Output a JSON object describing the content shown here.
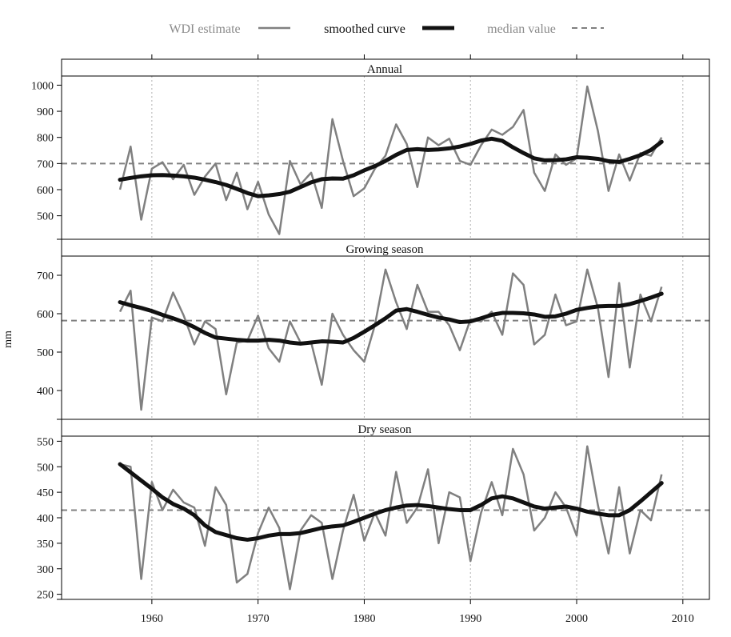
{
  "chart_data": {
    "type": "line",
    "ylabel": "mm",
    "x_axis": {
      "range": [
        1951.5,
        2012.5
      ],
      "ticks": [
        1960,
        1970,
        1980,
        1990,
        2000,
        2010
      ],
      "tick_labels": [
        "1960",
        "1970",
        "1980",
        "1990",
        "2000",
        "2010"
      ],
      "vertical_gridlines": [
        1960,
        1970,
        1980,
        1990,
        2000,
        2010
      ]
    },
    "legend": {
      "position": "top",
      "entries": [
        {
          "label": "WDI estimate",
          "style": "thin-gray"
        },
        {
          "label": "smoothed curve",
          "style": "thick-black"
        },
        {
          "label": "median value",
          "style": "dashed-gray"
        }
      ]
    },
    "colors": {
      "wdi": "#808080",
      "smoothed": "#111111",
      "median": "#808080",
      "grid": "#b0b0b0"
    },
    "years": [
      1957,
      1958,
      1959,
      1960,
      1961,
      1962,
      1963,
      1964,
      1965,
      1966,
      1967,
      1968,
      1969,
      1970,
      1971,
      1972,
      1973,
      1974,
      1975,
      1976,
      1977,
      1978,
      1979,
      1980,
      1981,
      1982,
      1983,
      1984,
      1985,
      1986,
      1987,
      1988,
      1989,
      1990,
      1991,
      1992,
      1993,
      1994,
      1995,
      1996,
      1997,
      1998,
      1999,
      2000,
      2001,
      2002,
      2003,
      2004,
      2005,
      2006,
      2007,
      2008
    ],
    "panels": [
      {
        "title": "Annual",
        "ylim": [
          410,
          1035
        ],
        "yticks": [
          500,
          600,
          700,
          800,
          900,
          1000
        ],
        "ytick_labels": [
          "500",
          "600",
          "700",
          "800",
          "900",
          "1000"
        ],
        "median": 700,
        "series": [
          {
            "name": "WDI estimate",
            "values": [
              600,
              765,
              485,
              680,
              705,
              640,
              695,
              580,
              650,
              700,
              560,
              665,
              525,
              630,
              505,
              430,
              710,
              620,
              665,
              530,
              870,
              710,
              575,
              605,
              680,
              730,
              850,
              775,
              610,
              800,
              770,
              795,
              710,
              695,
              770,
              830,
              810,
              840,
              905,
              665,
              595,
              735,
              695,
              720,
              995,
              825,
              595,
              735,
              635,
              740,
              730,
              800
            ]
          },
          {
            "name": "smoothed curve",
            "x": [
              1957,
              1958,
              1959,
              1960,
              1961,
              1962,
              1963,
              1964,
              1965,
              1966,
              1967,
              1968,
              1969,
              1970,
              1971,
              1972,
              1973,
              1974,
              1975,
              1976,
              1977,
              1978,
              1979,
              1980,
              1981,
              1982,
              1983,
              1984,
              1985,
              1986,
              1987,
              1988,
              1989,
              1990,
              1991,
              1992,
              1993,
              1994,
              1995,
              1996,
              1997,
              1998,
              1999,
              2000,
              2001,
              2002,
              2003,
              2004,
              2005,
              2006,
              2007,
              2008
            ],
            "values": [
              638,
              645,
              651,
              655,
              656,
              654,
              651,
              646,
              638,
              629,
              618,
              603,
              587,
              575,
              578,
              583,
              592,
              610,
              628,
              640,
              643,
              642,
              655,
              674,
              690,
              710,
              733,
              752,
              755,
              752,
              754,
              758,
              765,
              775,
              788,
              795,
              787,
              762,
              740,
              720,
              712,
              713,
              716,
              724,
              722,
              718,
              709,
              706,
              718,
              732,
              752,
              783
            ]
          }
        ]
      },
      {
        "title": "Growing season",
        "ylim": [
          325,
          750
        ],
        "yticks": [
          400,
          500,
          600,
          700
        ],
        "ytick_labels": [
          "400",
          "500",
          "600",
          "700"
        ],
        "median": 582,
        "series": [
          {
            "name": "WDI estimate",
            "values": [
              605,
              660,
              350,
              590,
              580,
              655,
              595,
              520,
              580,
              560,
              390,
              525,
              530,
              595,
              510,
              475,
              580,
              525,
              525,
              415,
              600,
              545,
              505,
              475,
              570,
              715,
              630,
              560,
              675,
              605,
              605,
              570,
              505,
              585,
              580,
              605,
              545,
              705,
              675,
              520,
              545,
              650,
              570,
              580,
              715,
              615,
              435,
              680,
              460,
              650,
              580,
              670
            ]
          },
          {
            "name": "smoothed curve",
            "x": [
              1957,
              1958,
              1959,
              1960,
              1961,
              1962,
              1963,
              1964,
              1965,
              1966,
              1967,
              1968,
              1969,
              1970,
              1971,
              1972,
              1973,
              1974,
              1975,
              1976,
              1977,
              1978,
              1979,
              1980,
              1981,
              1982,
              1983,
              1984,
              1985,
              1986,
              1987,
              1988,
              1989,
              1990,
              1991,
              1992,
              1993,
              1994,
              1995,
              1996,
              1997,
              1998,
              1999,
              2000,
              2001,
              2002,
              2003,
              2004,
              2005,
              2006,
              2007,
              2008
            ],
            "values": [
              630,
              622,
              615,
              607,
              597,
              588,
              578,
              565,
              550,
              538,
              535,
              532,
              530,
              530,
              532,
              530,
              525,
              522,
              525,
              528,
              527,
              525,
              537,
              553,
              570,
              588,
              608,
              612,
              605,
              597,
              590,
              585,
              578,
              580,
              588,
              597,
              602,
              602,
              601,
              598,
              592,
              593,
              600,
              610,
              615,
              619,
              620,
              620,
              625,
              633,
              642,
              652
            ]
          }
        ]
      },
      {
        "title": "Dry season",
        "ylim": [
          240,
          560
        ],
        "yticks": [
          250,
          300,
          350,
          400,
          450,
          500,
          550
        ],
        "ytick_labels": [
          "250",
          "300",
          "350",
          "400",
          "450",
          "500",
          "550"
        ],
        "median": 415,
        "series": [
          {
            "name": "WDI estimate",
            "values": [
              505,
              500,
              280,
              470,
              415,
              455,
              430,
              420,
              345,
              460,
              425,
              273,
              290,
              370,
              420,
              380,
              260,
              375,
              405,
              390,
              280,
              375,
              445,
              355,
              410,
              365,
              490,
              390,
              420,
              495,
              350,
              450,
              440,
              315,
              410,
              470,
              405,
              535,
              485,
              375,
              400,
              450,
              420,
              365,
              540,
              425,
              330,
              460,
              330,
              415,
              395,
              485
            ]
          },
          {
            "name": "smoothed curve",
            "x": [
              1957,
              1958,
              1959,
              1960,
              1961,
              1962,
              1963,
              1964,
              1965,
              1966,
              1967,
              1968,
              1969,
              1970,
              1971,
              1972,
              1973,
              1974,
              1975,
              1976,
              1977,
              1978,
              1979,
              1980,
              1981,
              1982,
              1983,
              1984,
              1985,
              1986,
              1987,
              1988,
              1989,
              1990,
              1991,
              1992,
              1993,
              1994,
              1995,
              1996,
              1997,
              1998,
              1999,
              2000,
              2001,
              2002,
              2003,
              2004,
              2005,
              2006,
              2007,
              2008
            ],
            "values": [
              505,
              489,
              473,
              457,
              440,
              427,
              418,
              405,
              385,
              372,
              366,
              360,
              357,
              360,
              365,
              368,
              368,
              370,
              375,
              380,
              383,
              385,
              392,
              400,
              408,
              415,
              420,
              424,
              425,
              423,
              420,
              417,
              415,
              415,
              425,
              438,
              442,
              438,
              430,
              422,
              418,
              420,
              422,
              418,
              412,
              408,
              405,
              405,
              415,
              432,
              450,
              468
            ]
          }
        ]
      }
    ]
  }
}
